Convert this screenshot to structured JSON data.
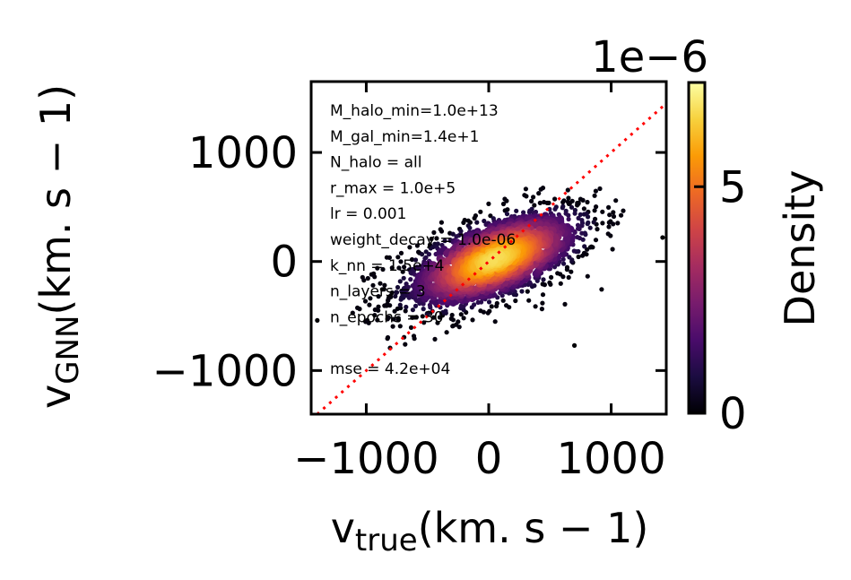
{
  "chart_data": {
    "type": "scatter",
    "title": "",
    "xlabel": {
      "base": "v",
      "sub": "true",
      "unit": "(km. s − 1)"
    },
    "ylabel": {
      "base": "v",
      "sub": "GNN",
      "unit": "(km. s − 1)"
    },
    "xlim": [
      -1450,
      1450
    ],
    "ylim": [
      -1400,
      1650
    ],
    "xticks": [
      -1000,
      0,
      1000
    ],
    "xtick_labels": [
      "−1000",
      "0",
      "1000"
    ],
    "yticks": [
      -1000,
      0,
      1000
    ],
    "ytick_labels": [
      "−1000",
      "0",
      "1000"
    ],
    "reference_line": {
      "style": "dotted",
      "color": "#ff0000",
      "x": [
        -1450,
        1450
      ],
      "y": [
        -1450,
        1450
      ]
    },
    "density_cloud": {
      "center": [
        50,
        20
      ],
      "x_spread": 420,
      "y_spread": 260,
      "correlation": 0.6,
      "n_points": 1600,
      "x_range": [
        -1150,
        1150
      ],
      "y_range": [
        -850,
        700
      ]
    },
    "outliers": [
      {
        "x": 700,
        "y": -770
      },
      {
        "x": 1420,
        "y": 220
      },
      {
        "x": -1400,
        "y": -540
      }
    ],
    "annotations": [
      "M_halo_min=1.0e+13",
      "M_gal_min=1.4e+1",
      "N_halo = all",
      "r_max = 1.0e+5",
      "lr = 0.001",
      "weight_decay = 1.0e-06",
      "k_nn = 1.5e+4",
      "n_layers = 3",
      "n_epochs = 30",
      "",
      "mse = 4.2e+04"
    ],
    "colorbar": {
      "label": "Density",
      "multiplier": "1e−6",
      "ticks": [
        0,
        5
      ],
      "tick_labels": [
        "0",
        "5"
      ],
      "range": [
        0,
        7.3
      ],
      "colormap": "inferno"
    },
    "colors": {
      "cmap_stops": [
        "#000004",
        "#1b0c41",
        "#4a0c6b",
        "#781c6d",
        "#a52c60",
        "#cf4446",
        "#ed6925",
        "#fb9b06",
        "#f7d13d",
        "#fcffa4"
      ]
    }
  }
}
